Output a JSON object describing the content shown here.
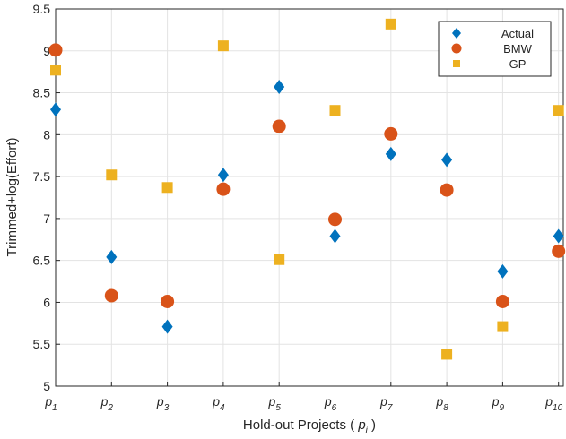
{
  "chart_data": {
    "type": "scatter",
    "title": "",
    "xlabel": "Hold-out Projects ( ",
    "xlabel_var": "p",
    "xlabel_sub": "i",
    "xlabel_end": " )",
    "ylabel": "Trimmed+log(Effort)",
    "categories": [
      {
        "base": "p",
        "sub": "1"
      },
      {
        "base": "p",
        "sub": "2"
      },
      {
        "base": "p",
        "sub": "3"
      },
      {
        "base": "p",
        "sub": "4"
      },
      {
        "base": "p",
        "sub": "5"
      },
      {
        "base": "p",
        "sub": "6"
      },
      {
        "base": "p",
        "sub": "7"
      },
      {
        "base": "p",
        "sub": "8"
      },
      {
        "base": "p",
        "sub": "9"
      },
      {
        "base": "p",
        "sub": "10"
      }
    ],
    "ylim": [
      5,
      9.5
    ],
    "yticks": [
      "5",
      "5.5",
      "6",
      "6.5",
      "7",
      "7.5",
      "8",
      "8.5",
      "9",
      "9.5"
    ],
    "grid": true,
    "legend_position": "top-right",
    "series": [
      {
        "name": "Actual",
        "marker": "diamond",
        "color": "#0072BD",
        "values": [
          8.3,
          6.54,
          5.71,
          7.52,
          8.57,
          6.79,
          7.77,
          7.7,
          6.37,
          6.79
        ]
      },
      {
        "name": "BMW",
        "marker": "circle",
        "color": "#D95319",
        "values": [
          9.01,
          6.08,
          6.01,
          7.35,
          8.1,
          6.99,
          8.01,
          7.34,
          6.01,
          6.61
        ]
      },
      {
        "name": "GP",
        "marker": "square",
        "color": "#EDB120",
        "values": [
          8.77,
          7.52,
          7.37,
          9.06,
          6.51,
          8.29,
          9.32,
          5.38,
          5.71,
          8.29
        ]
      }
    ]
  }
}
